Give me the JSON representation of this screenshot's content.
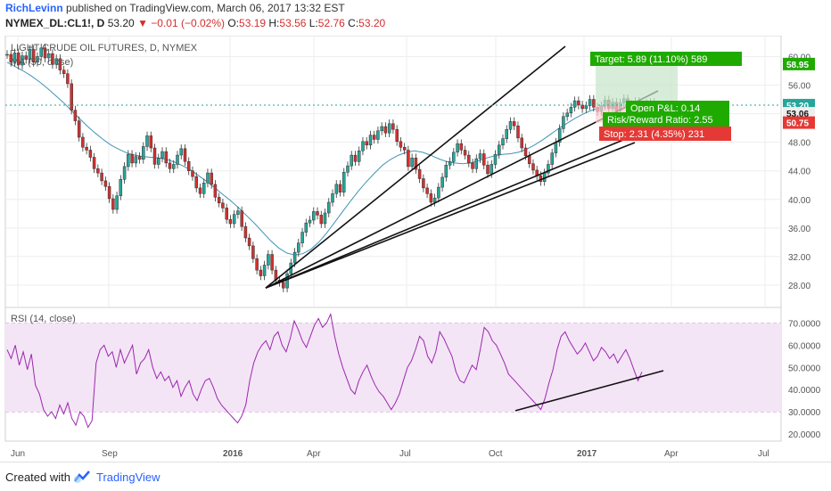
{
  "header": {
    "author": "RichLevinn",
    "published_text": "published on TradingView.com, March 06, 2017 13:32 EST",
    "symbol": "NYMEX_DL:CL1!, D",
    "last": "53.20",
    "change": "▼ −0.01 (−0.02%)",
    "ohlc": {
      "o_label": "O:",
      "o": "53.19",
      "h_label": "H:",
      "h": "53.56",
      "l_label": "L:",
      "l": "52.76",
      "c_label": "C:",
      "c": "53.20"
    }
  },
  "footer": {
    "created_with": "Created with",
    "brand": "TradingView"
  },
  "colors": {
    "up": "#26a69a",
    "down": "#d32f2f",
    "ma": "#3f94b5",
    "rsi": "#9c27b0",
    "rsi_band": "#f3e5f5",
    "target": "#1faa00",
    "stop": "#e53935"
  },
  "chart_data": [
    {
      "type": "candlestick",
      "title": "LIGHT CRUDE OIL FUTURES, D, NYMEX",
      "ma_label": "MA (50, close)",
      "x_ticks": [
        "Jun",
        "Sep",
        "2016",
        "Apr",
        "Jul",
        "Oct",
        "2017",
        "Apr",
        "Jul"
      ],
      "y_ticks": [
        "60.00",
        "56.00",
        "52.00",
        "48.00",
        "44.00",
        "40.00",
        "36.00",
        "32.00",
        "28.00"
      ],
      "ylim": [
        25.5,
        62.3
      ],
      "price_labels": {
        "target": "58.95",
        "current": "53.20",
        "entry": "53.06",
        "stop": "50.75"
      },
      "position": {
        "target": "Target: 5.89 (11.10%) 589",
        "open_pnl": "Open P&L: 0.14",
        "rr": "Risk/Reward Ratio: 2.55",
        "stop": "Stop: 2.31 (4.35%) 231"
      },
      "closes": [
        60.3,
        59.2,
        60.5,
        58.8,
        60.1,
        59.6,
        61.0,
        59.2,
        60.0,
        61.2,
        59.8,
        60.4,
        58.9,
        59.7,
        58.1,
        57.6,
        56.2,
        52.5,
        51.0,
        48.7,
        47.3,
        46.9,
        45.9,
        44.3,
        43.7,
        42.6,
        41.8,
        40.1,
        38.6,
        40.5,
        42.8,
        44.6,
        46.3,
        45.1,
        46.0,
        45.6,
        47.4,
        48.9,
        47.2,
        44.9,
        45.8,
        46.7,
        45.1,
        44.3,
        44.9,
        46.2,
        47.1,
        45.3,
        44.0,
        43.2,
        41.6,
        40.8,
        42.3,
        43.7,
        42.1,
        40.3,
        39.5,
        38.8,
        37.2,
        36.6,
        37.9,
        38.4,
        36.2,
        34.6,
        33.5,
        31.7,
        30.1,
        29.3,
        30.8,
        32.3,
        30.1,
        28.7,
        28.4,
        27.6,
        29.6,
        31.1,
        32.6,
        33.9,
        35.4,
        36.7,
        37.1,
        38.3,
        37.8,
        36.6,
        38.1,
        39.6,
        40.8,
        42.1,
        41.0,
        43.8,
        44.7,
        46.2,
        45.3,
        46.8,
        48.1,
        47.6,
        49.0,
        48.4,
        49.6,
        50.2,
        49.3,
        50.6,
        49.8,
        48.1,
        47.3,
        46.9,
        44.6,
        45.8,
        44.2,
        42.9,
        41.6,
        40.8,
        39.6,
        40.2,
        41.7,
        43.1,
        44.8,
        45.3,
        46.6,
        47.8,
        46.9,
        46.2,
        45.1,
        44.3,
        45.7,
        46.4,
        44.8,
        43.6,
        44.9,
        46.3,
        47.6,
        48.5,
        49.8,
        50.9,
        50.3,
        48.6,
        47.2,
        46.1,
        45.0,
        44.1,
        43.3,
        42.5,
        43.7,
        44.9,
        46.5,
        48.0,
        49.9,
        51.6,
        52.1,
        52.9,
        53.8,
        53.2,
        52.7,
        53.1,
        54.0,
        52.9,
        52.3,
        53.1,
        53.9,
        52.7,
        53.6,
        52.4,
        53.5,
        54.1,
        53.3,
        52.9,
        53.7,
        53.2,
        52.8,
        53.4,
        53.56,
        53.19,
        53.2
      ],
      "ma": [
        59.2,
        58.6,
        58.0,
        57.3,
        56.5,
        55.6,
        54.6,
        53.6,
        52.5,
        51.4,
        50.3,
        49.3,
        48.4,
        47.6,
        47.0,
        46.5,
        46.2,
        46.0,
        45.9,
        45.8,
        45.6,
        45.2,
        44.7,
        44.1,
        43.3,
        42.5,
        41.6,
        40.7,
        39.8,
        38.8,
        37.7,
        36.6,
        35.4,
        34.2,
        33.2,
        32.5,
        32.2,
        32.4,
        33.0,
        34.0,
        35.3,
        36.8,
        38.3,
        39.8,
        41.2,
        42.5,
        43.7,
        44.8,
        45.6,
        46.2,
        46.6,
        46.8,
        46.6,
        46.2,
        45.7,
        45.3,
        45.1,
        45.0,
        45.1,
        45.4,
        45.8,
        46.1,
        46.3,
        46.4,
        46.6,
        47.0,
        47.6,
        48.3,
        49.1,
        49.9,
        50.6,
        51.3,
        51.9,
        52.4,
        52.8,
        53.0
      ]
    },
    {
      "type": "line",
      "title": "RSI (14, close)",
      "y_ticks": [
        "70.0000",
        "60.0000",
        "50.0000",
        "40.0000",
        "30.0000",
        "20.0000"
      ],
      "ylim": [
        18,
        75
      ],
      "band": [
        30,
        70
      ],
      "values": [
        58,
        54,
        60,
        51,
        57,
        49,
        56,
        42,
        38,
        31,
        28,
        30,
        27,
        33,
        29,
        34,
        27,
        24,
        30,
        28,
        23,
        26,
        52,
        58,
        60,
        55,
        57,
        50,
        58,
        52,
        56,
        60,
        47,
        52,
        54,
        58,
        50,
        45,
        48,
        44,
        46,
        41,
        44,
        37,
        41,
        44,
        38,
        35,
        40,
        44,
        45,
        41,
        36,
        33,
        31,
        29,
        27,
        25,
        28,
        33,
        44,
        52,
        57,
        60,
        62,
        58,
        64,
        66,
        60,
        57,
        63,
        71,
        67,
        62,
        59,
        64,
        69,
        72,
        68,
        70,
        74,
        64,
        56,
        50,
        45,
        40,
        38,
        44,
        48,
        51,
        46,
        42,
        39,
        37,
        34,
        31,
        34,
        38,
        44,
        50,
        53,
        58,
        64,
        62,
        55,
        52,
        57,
        66,
        63,
        59,
        55,
        48,
        44,
        43,
        47,
        51,
        49,
        58,
        68,
        66,
        62,
        60,
        56,
        52,
        47,
        45,
        43,
        41,
        39,
        37,
        35,
        33,
        31,
        36,
        43,
        49,
        58,
        64,
        66,
        62,
        59,
        56,
        58,
        61,
        57,
        53,
        55,
        59,
        57,
        54,
        56,
        52,
        55,
        58,
        54,
        49,
        44,
        48
      ],
      "x_ticks": [
        "Jun",
        "Sep",
        "2016",
        "Apr",
        "Jul",
        "Oct",
        "2017",
        "Apr",
        "Jul"
      ]
    }
  ]
}
